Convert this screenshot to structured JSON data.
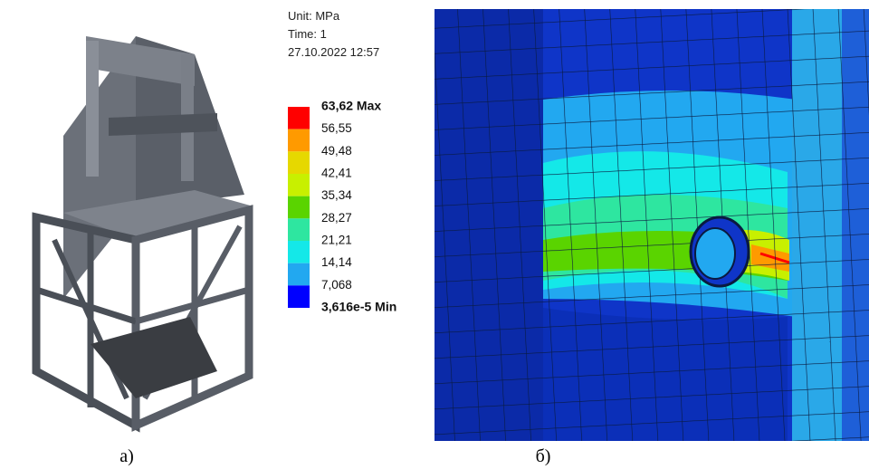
{
  "figure": {
    "panels": [
      {
        "caption": "а)"
      },
      {
        "caption": "б)",
        "info": [
          "Unit: MPa",
          "Time: 1",
          "27.10.2022 12:57"
        ],
        "legend": {
          "labels": [
            "63,62 Max",
            "56,55",
            "49,48",
            "42,41",
            "35,34",
            "28,27",
            "21,21",
            "14,14",
            "7,068",
            "3,616e-5 Min"
          ],
          "colors": [
            "#ff0000",
            "#ff9a00",
            "#e6d800",
            "#c8f000",
            "#5ad400",
            "#2ee6a0",
            "#14e8e8",
            "#22a8f0",
            "#0000ff"
          ]
        }
      }
    ]
  }
}
